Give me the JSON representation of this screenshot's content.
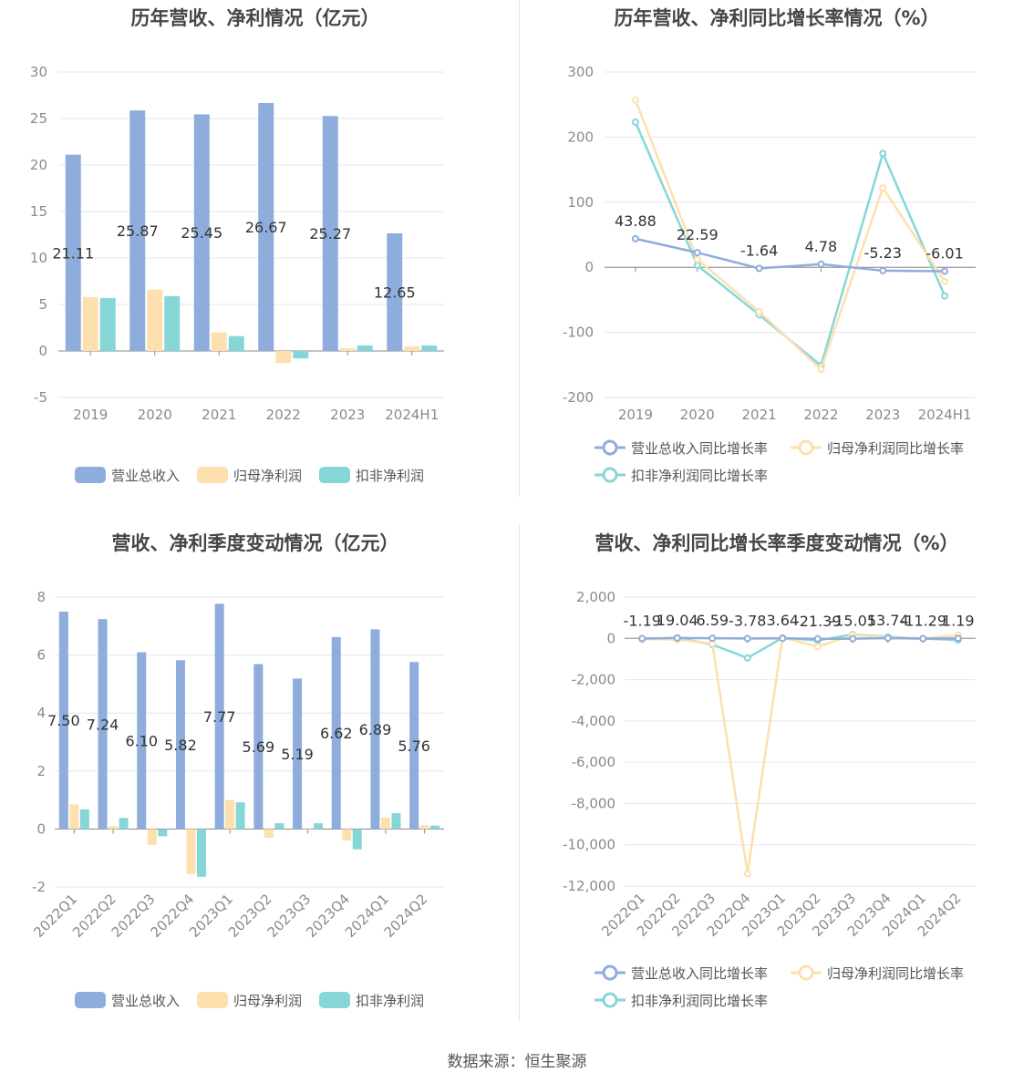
{
  "colors": {
    "revenue": "#8eaddc",
    "net": "#fde0ad",
    "deducted": "#86d6d8",
    "grid": "#e3e6ee",
    "axis": "#888888",
    "tick": "#8a8a8a"
  },
  "charts": {
    "annual": {
      "title": "历年营收、净利情况（亿元）",
      "legend": [
        "营业总收入",
        "归母净利润",
        "扣非净利润"
      ]
    },
    "annual_growth": {
      "title": "历年营收、净利同比增长率情况（%）",
      "legend": [
        "营业总收入同比增长率",
        "归母净利润同比增长率",
        "扣非净利润同比增长率"
      ]
    },
    "quarterly": {
      "title": "营收、净利季度变动情况（亿元）",
      "legend": [
        "营业总收入",
        "归母净利润",
        "扣非净利润"
      ]
    },
    "quarterly_growth": {
      "title": "营收、净利同比增长率季度变动情况（%）",
      "legend": [
        "营业总收入同比增长率",
        "归母净利润同比增长率",
        "扣非净利润同比增长率"
      ]
    }
  },
  "source": "数据来源：恒生聚源",
  "chart_data": [
    {
      "type": "bar",
      "title": "历年营收、净利情况（亿元）",
      "categories": [
        "2019",
        "2020",
        "2021",
        "2022",
        "2023",
        "2024H1"
      ],
      "ylim": [
        -5,
        30
      ],
      "yticks": [
        -5,
        0,
        5,
        10,
        15,
        20,
        25,
        30
      ],
      "grid": true,
      "legend_position": "bottom",
      "series": [
        {
          "name": "营业总收入",
          "values": [
            21.11,
            25.87,
            25.45,
            26.67,
            25.27,
            12.65
          ],
          "labels": [
            "21.11",
            "25.87",
            "25.45",
            "26.67",
            "25.27",
            "12.65"
          ]
        },
        {
          "name": "归母净利润",
          "values": [
            5.8,
            6.6,
            2.0,
            -1.3,
            0.3,
            0.5
          ]
        },
        {
          "name": "扣非净利润",
          "values": [
            5.7,
            5.9,
            1.6,
            -0.8,
            0.6,
            0.6
          ]
        }
      ]
    },
    {
      "type": "line",
      "title": "历年营收、净利同比增长率情况（%）",
      "categories": [
        "2019",
        "2020",
        "2021",
        "2022",
        "2023",
        "2024H1"
      ],
      "ylim": [
        -200,
        300
      ],
      "yticks": [
        -200,
        -100,
        0,
        100,
        200,
        300
      ],
      "grid": true,
      "legend_position": "bottom",
      "series": [
        {
          "name": "营业总收入同比增长率",
          "values": [
            43.88,
            22.59,
            -1.64,
            4.78,
            -5.23,
            -6.01
          ],
          "labels": [
            "43.88",
            "22.59",
            "-1.64",
            "4.78",
            "-5.23",
            "-6.01"
          ]
        },
        {
          "name": "归母净利润同比增长率",
          "values": [
            257,
            12,
            -68,
            -157,
            122,
            -22
          ]
        },
        {
          "name": "扣非净利润同比增长率",
          "values": [
            223,
            3,
            -73,
            -151,
            175,
            -44
          ]
        }
      ]
    },
    {
      "type": "bar",
      "title": "营收、净利季度变动情况（亿元）",
      "categories": [
        "2022Q1",
        "2022Q2",
        "2022Q3",
        "2022Q4",
        "2023Q1",
        "2023Q2",
        "2023Q3",
        "2023Q4",
        "2024Q1",
        "2024Q2"
      ],
      "ylim": [
        -2,
        8
      ],
      "yticks": [
        -2,
        0,
        2,
        4,
        6,
        8
      ],
      "grid": true,
      "legend_position": "bottom",
      "series": [
        {
          "name": "营业总收入",
          "values": [
            7.5,
            7.24,
            6.1,
            5.82,
            7.77,
            5.69,
            5.19,
            6.62,
            6.89,
            5.76
          ],
          "labels": [
            "7.50",
            "7.24",
            "6.10",
            "5.82",
            "7.77",
            "5.69",
            "5.19",
            "6.62",
            "6.89",
            "5.76"
          ]
        },
        {
          "name": "归母净利润",
          "values": [
            0.85,
            0.1,
            -0.55,
            -1.55,
            1.0,
            -0.3,
            0.0,
            -0.4,
            0.4,
            0.13
          ]
        },
        {
          "name": "扣非净利润",
          "values": [
            0.68,
            0.38,
            -0.25,
            -1.65,
            0.92,
            0.2,
            0.2,
            -0.7,
            0.55,
            0.12
          ]
        }
      ]
    },
    {
      "type": "line",
      "title": "营收、净利同比增长率季度变动情况（%）",
      "categories": [
        "2022Q1",
        "2022Q2",
        "2022Q3",
        "2022Q4",
        "2023Q1",
        "2023Q2",
        "2023Q3",
        "2023Q4",
        "2024Q1",
        "2024Q2"
      ],
      "ylim": [
        -12000,
        2000
      ],
      "yticks": [
        -12000,
        -10000,
        -8000,
        -6000,
        -4000,
        -2000,
        0,
        2000
      ],
      "grid": true,
      "legend_position": "bottom",
      "series": [
        {
          "name": "营业总收入同比增长率",
          "values": [
            -1.19,
            19.04,
            6.59,
            -3.78,
            3.64,
            -21.39,
            -15.05,
            13.74,
            -11.29,
            1.19
          ],
          "labels": [
            "-1.19",
            "19.04",
            "6.59",
            "-3.78",
            "3.64",
            "-21.39",
            "-15.05",
            "13.74",
            "-11.29",
            "1.19"
          ]
        },
        {
          "name": "归母净利润同比增长率",
          "values": [
            -30,
            -60,
            -250,
            -11400,
            50,
            -400,
            160,
            50,
            0,
            160
          ]
        },
        {
          "name": "扣非净利润同比增长率",
          "values": [
            -50,
            30,
            -300,
            -950,
            30,
            -100,
            190,
            80,
            -10,
            -80
          ]
        }
      ]
    }
  ]
}
